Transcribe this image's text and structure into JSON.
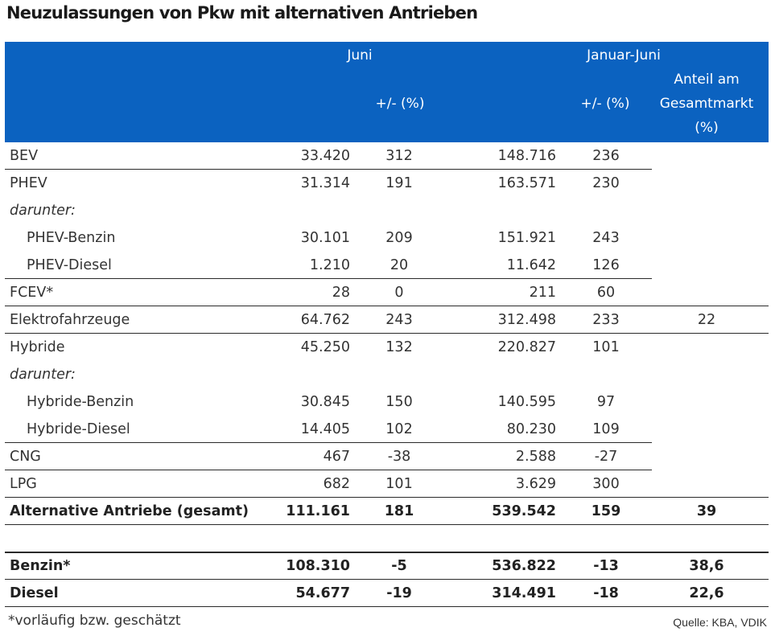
{
  "title": "Neuzulassungen von Pkw mit alternativen Antrieben",
  "header": {
    "group_juni": "Juni",
    "group_januar_juni": "Januar-Juni",
    "juni_change": "+/- (%)",
    "januar_juni_change": "+/- (%)",
    "anteil_line1": "Anteil am",
    "anteil_line2": "Gesamtmarkt",
    "anteil_line3": "(%)"
  },
  "rows": [
    {
      "label": "BEV",
      "juni": "33.420",
      "juni_change": "312",
      "jj": "148.716",
      "jj_change": "236",
      "anteil": ""
    },
    {
      "label": "PHEV",
      "juni": "31.314",
      "juni_change": "191",
      "jj": "163.571",
      "jj_change": "230",
      "anteil": ""
    },
    {
      "label": "darunter:",
      "juni": "",
      "juni_change": "",
      "jj": "",
      "jj_change": "",
      "anteil": ""
    },
    {
      "label": "PHEV-Benzin",
      "juni": "30.101",
      "juni_change": "209",
      "jj": "151.921",
      "jj_change": "243",
      "anteil": ""
    },
    {
      "label": "PHEV-Diesel",
      "juni": "1.210",
      "juni_change": "20",
      "jj": "11.642",
      "jj_change": "126",
      "anteil": ""
    },
    {
      "label": "FCEV*",
      "juni": "28",
      "juni_change": "0",
      "jj": "211",
      "jj_change": "60",
      "anteil": ""
    },
    {
      "label": "Elektrofahrzeuge",
      "juni": "64.762",
      "juni_change": "243",
      "jj": "312.498",
      "jj_change": "233",
      "anteil": "22"
    },
    {
      "label": "Hybride",
      "juni": "45.250",
      "juni_change": "132",
      "jj": "220.827",
      "jj_change": "101",
      "anteil": ""
    },
    {
      "label": "darunter:",
      "juni": "",
      "juni_change": "",
      "jj": "",
      "jj_change": "",
      "anteil": ""
    },
    {
      "label": "Hybride-Benzin",
      "juni": "30.845",
      "juni_change": "150",
      "jj": "140.595",
      "jj_change": "97",
      "anteil": ""
    },
    {
      "label": "Hybride-Diesel",
      "juni": "14.405",
      "juni_change": "102",
      "jj": "80.230",
      "jj_change": "109",
      "anteil": ""
    },
    {
      "label": "CNG",
      "juni": "467",
      "juni_change": "-38",
      "jj": "2.588",
      "jj_change": "-27",
      "anteil": ""
    },
    {
      "label": "LPG",
      "juni": "682",
      "juni_change": "101",
      "jj": "3.629",
      "jj_change": "300",
      "anteil": ""
    },
    {
      "label": "Alternative Antriebe (gesamt)",
      "juni": "111.161",
      "juni_change": "181",
      "jj": "539.542",
      "jj_change": "159",
      "anteil": "39"
    },
    {
      "label": "Benzin*",
      "juni": "108.310",
      "juni_change": "-5",
      "jj": "536.822",
      "jj_change": "-13",
      "anteil": "38,6"
    },
    {
      "label": "Diesel",
      "juni": "54.677",
      "juni_change": "-19",
      "jj": "314.491",
      "jj_change": "-18",
      "anteil": "22,6"
    }
  ],
  "footnote": "*vorläufig bzw. geschätzt",
  "source": "Quelle: KBA, VDIK",
  "colors": {
    "header_bg": "#0b62c0",
    "header_text": "#ffffff",
    "body_text": "#333333"
  }
}
